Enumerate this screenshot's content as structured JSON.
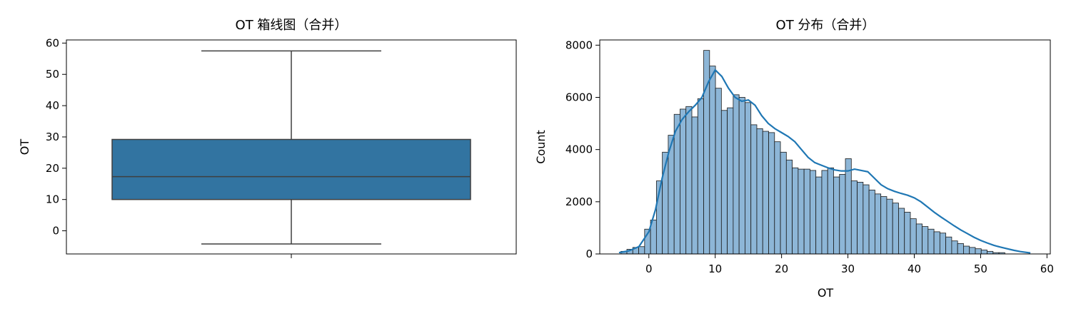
{
  "chart_data": [
    {
      "type": "box",
      "title": "OT 箱线图（合并）",
      "xlabel": "",
      "ylabel": "OT",
      "ylim": [
        -7.4,
        61.0
      ],
      "yticks": [
        0,
        10,
        20,
        30,
        40,
        50,
        60
      ],
      "grid": false,
      "legend": "none",
      "box": {
        "whisker_low": -4.2,
        "q1": 10.0,
        "median": 17.3,
        "q3": 29.2,
        "whisker_high": 57.5
      },
      "colors": {
        "box_fill": "#3274a1",
        "box_edge": "#3f3f3f"
      }
    },
    {
      "type": "histogram",
      "title": "OT 分布（合并）",
      "xlabel": "OT",
      "ylabel": "Count",
      "xlim": [
        -7.4,
        60.5
      ],
      "ylim": [
        0,
        8200
      ],
      "xticks": [
        0,
        10,
        20,
        30,
        40,
        50,
        60
      ],
      "yticks": [
        0,
        2000,
        4000,
        6000,
        8000
      ],
      "grid": false,
      "legend": "none",
      "bin_start": -4.2,
      "bin_width": 0.89,
      "counts": [
        100,
        180,
        250,
        280,
        950,
        1300,
        2800,
        3900,
        4550,
        5350,
        5550,
        5650,
        5250,
        5950,
        7800,
        7200,
        6350,
        5500,
        5600,
        6100,
        6000,
        5800,
        4950,
        4800,
        4700,
        4650,
        4300,
        3900,
        3600,
        3300,
        3250,
        3250,
        3200,
        2950,
        3200,
        3300,
        2950,
        3050,
        3650,
        2800,
        2750,
        2650,
        2450,
        2300,
        2200,
        2100,
        1950,
        1750,
        1600,
        1350,
        1150,
        1050,
        950,
        850,
        800,
        650,
        500,
        400,
        300,
        250,
        200,
        150,
        100,
        50,
        50
      ],
      "kde": {
        "x": [
          -4.5,
          -3,
          -1.5,
          0,
          1,
          2,
          3,
          4,
          5,
          6,
          7,
          8,
          9,
          10,
          11,
          12,
          13,
          14,
          15,
          16,
          17,
          18,
          19,
          20,
          21,
          22,
          23,
          24,
          25,
          26,
          27,
          28,
          29,
          30,
          31,
          32,
          33,
          34,
          35,
          36,
          37,
          38,
          39,
          40,
          41,
          42,
          43,
          44,
          45,
          46,
          47,
          48,
          49,
          50,
          51,
          52,
          53,
          54,
          55,
          56,
          57.5
        ],
        "y": [
          50,
          120,
          280,
          850,
          1700,
          2900,
          3900,
          4700,
          5150,
          5450,
          5700,
          6000,
          6600,
          7050,
          6800,
          6350,
          6000,
          5850,
          5900,
          5700,
          5300,
          5000,
          4800,
          4650,
          4500,
          4300,
          4000,
          3700,
          3500,
          3400,
          3300,
          3220,
          3180,
          3180,
          3250,
          3200,
          3150,
          2900,
          2650,
          2500,
          2400,
          2320,
          2250,
          2150,
          2000,
          1800,
          1600,
          1420,
          1250,
          1080,
          920,
          780,
          640,
          520,
          420,
          330,
          260,
          200,
          140,
          90,
          40
        ]
      },
      "colors": {
        "bar_fill": "#8db6d7",
        "bar_edge": "#1a1a1a",
        "kde_line": "#1f77b4"
      }
    }
  ]
}
